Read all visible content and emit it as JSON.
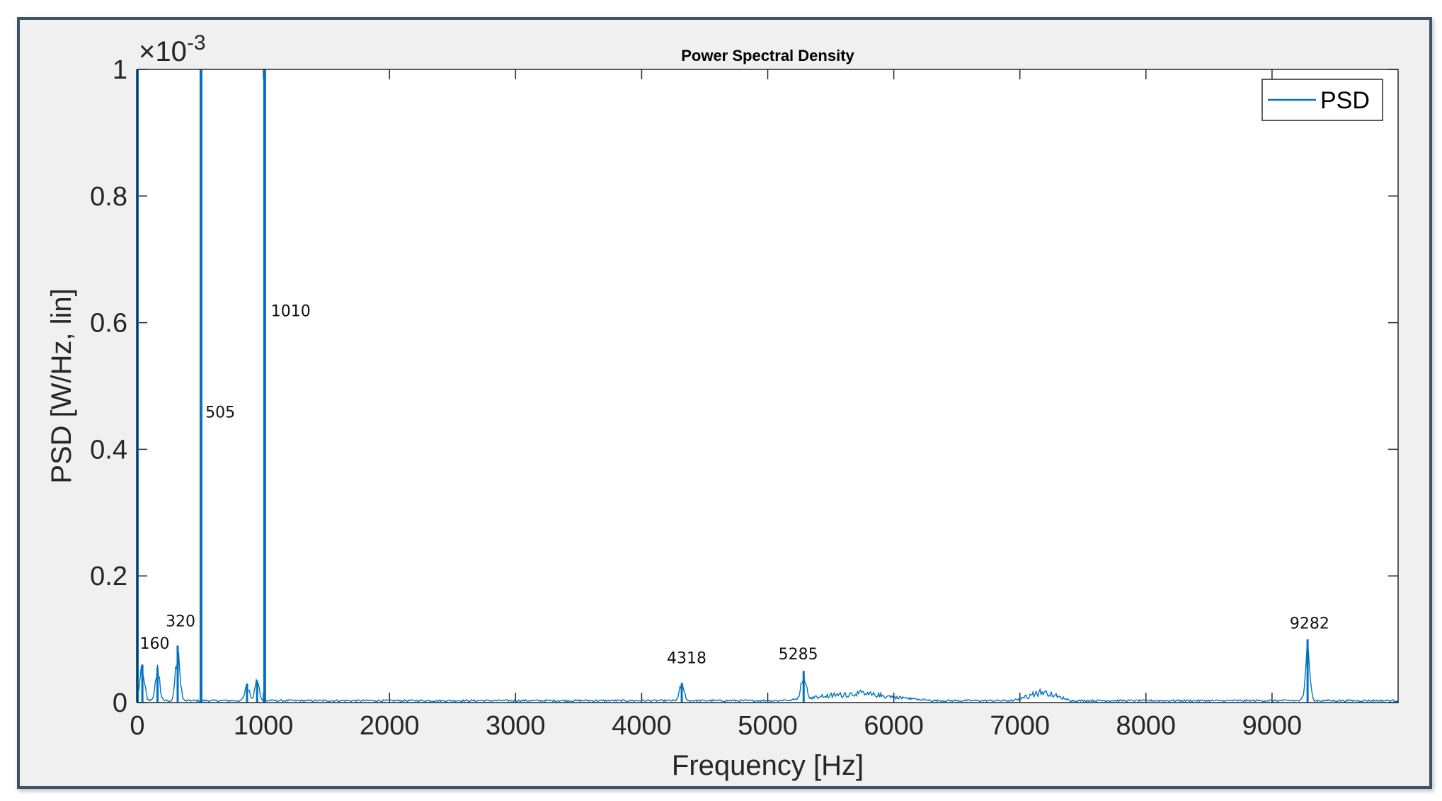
{
  "chart_data": {
    "type": "line",
    "title": "Power Spectral Density",
    "xlabel": "Frequency [Hz]",
    "ylabel": "PSD [W/Hz, lin]",
    "y_exponent_label": "×10",
    "y_exponent_power": "-3",
    "xlim": [
      0,
      10000
    ],
    "ylim": [
      0,
      1
    ],
    "x_ticks": [
      0,
      1000,
      2000,
      3000,
      4000,
      5000,
      6000,
      7000,
      8000,
      9000
    ],
    "x_tick_labels": [
      "0",
      "1000",
      "2000",
      "3000",
      "4000",
      "5000",
      "6000",
      "7000",
      "8000",
      "9000"
    ],
    "y_ticks": [
      0,
      0.2,
      0.4,
      0.6,
      0.8,
      1
    ],
    "y_tick_labels": [
      "0",
      "0.2",
      "0.4",
      "0.6",
      "0.8",
      "1"
    ],
    "legend": {
      "position": "top-right",
      "entries": [
        "PSD"
      ]
    },
    "series_color": "#0072bd",
    "peaks": [
      {
        "x": 0,
        "y": 1.0
      },
      {
        "x": 40,
        "y": 0.06
      },
      {
        "x": 160,
        "y": 0.055
      },
      {
        "x": 320,
        "y": 0.09
      },
      {
        "x": 505,
        "y": 1.0
      },
      {
        "x": 870,
        "y": 0.03
      },
      {
        "x": 950,
        "y": 0.035
      },
      {
        "x": 1010,
        "y": 1.0
      },
      {
        "x": 4318,
        "y": 0.03
      },
      {
        "x": 5285,
        "y": 0.05
      },
      {
        "x": 9282,
        "y": 0.1
      }
    ],
    "broadband_regions": [
      {
        "x_start": 5100,
        "x_end": 6300,
        "level": 0.013
      },
      {
        "x_start": 6950,
        "x_end": 7400,
        "level": 0.016
      }
    ],
    "annotations": [
      {
        "text": "160",
        "x": 20,
        "y": 0.085
      },
      {
        "text": "320",
        "x": 225,
        "y": 0.12
      },
      {
        "text": "505",
        "x": 540,
        "y": 0.45
      },
      {
        "text": "1010",
        "x": 1060,
        "y": 0.61
      },
      {
        "text": "4318",
        "x": 4200,
        "y": 0.062
      },
      {
        "text": "5285",
        "x": 5085,
        "y": 0.068
      },
      {
        "text": "9282",
        "x": 9140,
        "y": 0.117
      }
    ]
  }
}
